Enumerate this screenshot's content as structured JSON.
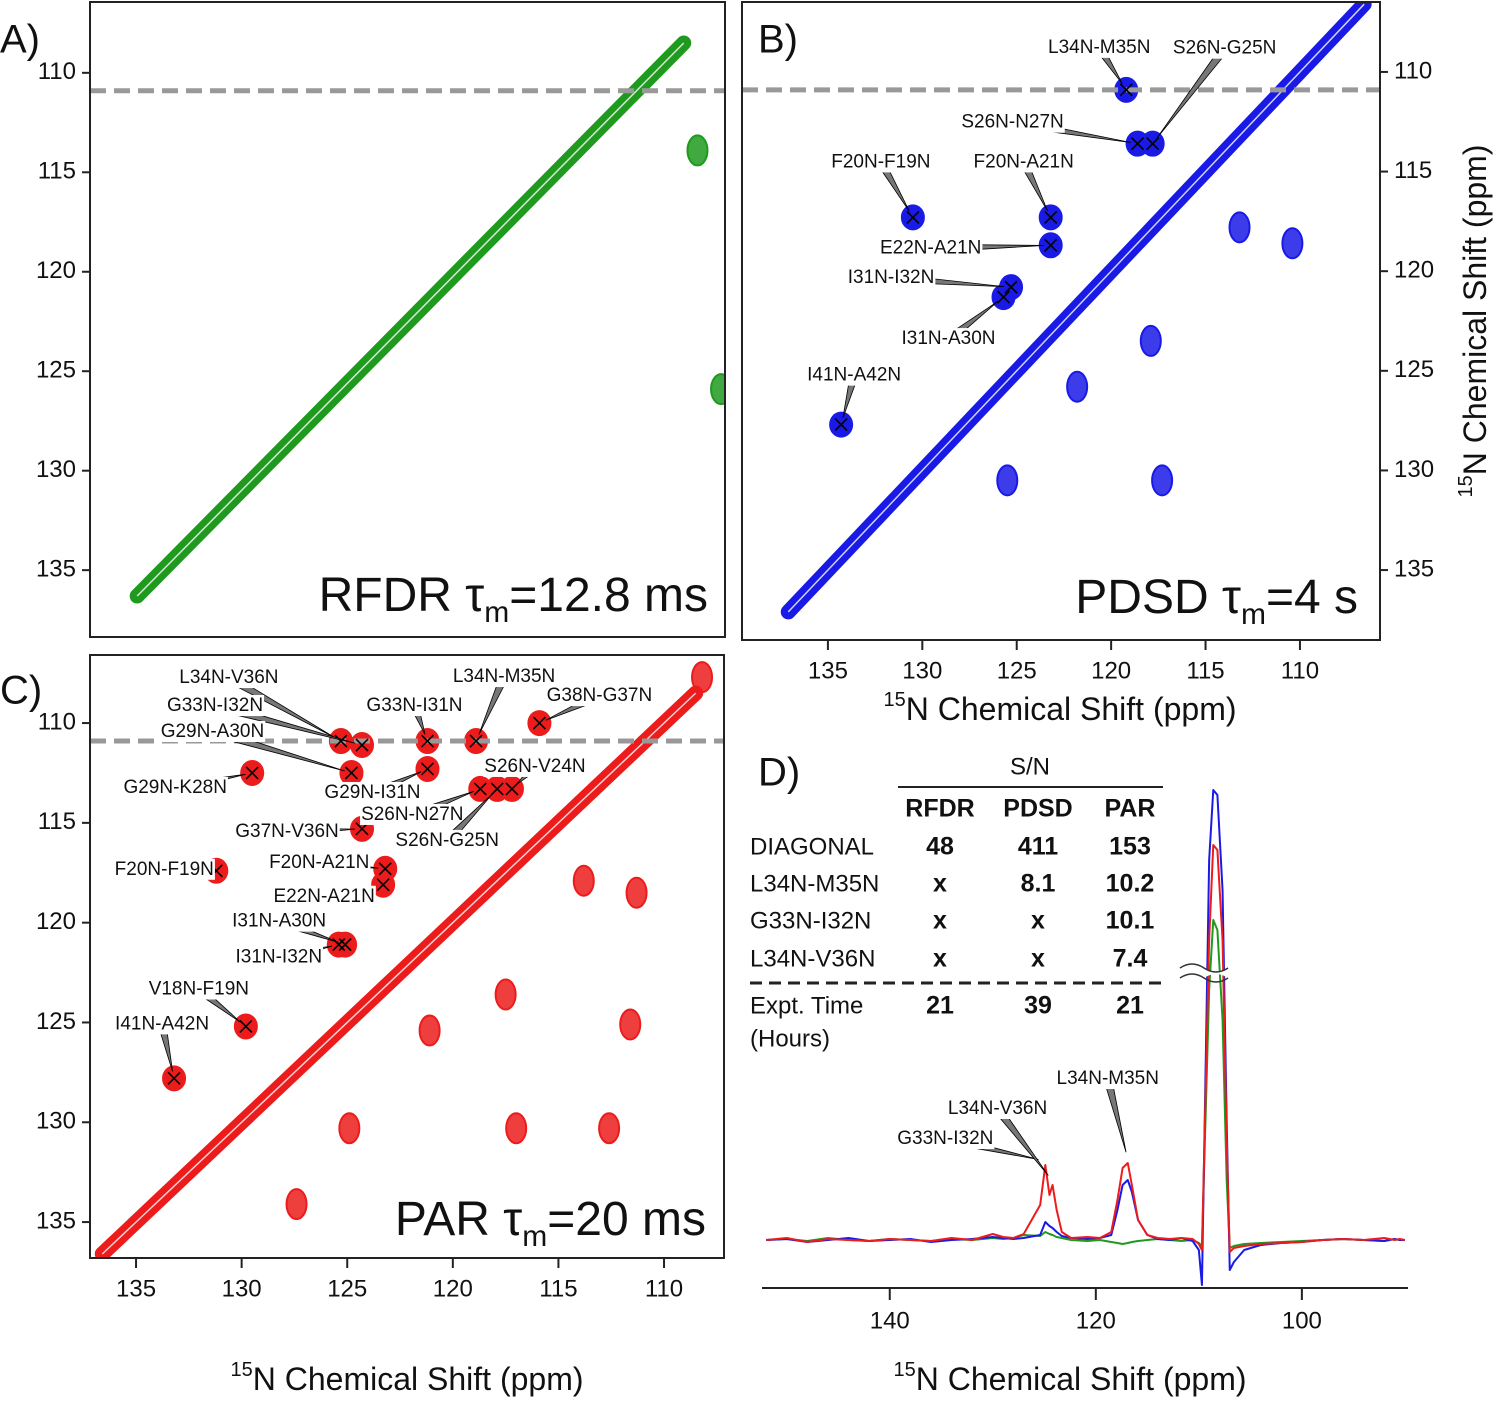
{
  "chart_data": [
    {
      "type": "contour",
      "panel": "A)",
      "annotation": [
        "RFDR τ",
        "m",
        "=12.8 ms"
      ],
      "color": "#1f9a1f",
      "xlim": [
        138.7,
        106.4
      ],
      "ylim": [
        106.44,
        138.36
      ],
      "yticks": [
        110,
        115,
        120,
        125,
        130,
        135
      ],
      "y_axis_side": "left",
      "hline": 110.9,
      "diagonal": [
        136.3,
        108.5
      ],
      "other_peaks": {
        "x": [
          107.8,
          106.6
        ],
        "y": [
          113.9,
          125.9
        ]
      }
    },
    {
      "type": "contour",
      "panel": "B)",
      "annotation": [
        "PDSD τ",
        "m",
        "=4 s"
      ],
      "color": "#1a1ae6",
      "xlim": [
        139.55,
        105.76
      ],
      "ylim": [
        106.49,
        138.51
      ],
      "xticks": [
        135,
        130,
        125,
        120,
        115,
        110
      ],
      "yticks": [
        110,
        115,
        120,
        125,
        130,
        135
      ],
      "y_axis_side": "right",
      "xlabel": [
        "15",
        "N Chemical Shift (ppm)"
      ],
      "ylabel": [
        "15",
        "N Chemical Shift (ppm)"
      ],
      "hline": 110.9,
      "diagonal": [
        137.1,
        106.6
      ],
      "cross_peaks": [
        {
          "label": "L34N-M35N",
          "x": 119.2,
          "y": 110.9
        },
        {
          "label": "S26N-G25N",
          "x": 117.8,
          "y": 113.6
        },
        {
          "label": "S26N-N27N",
          "x": 118.6,
          "y": 113.6
        },
        {
          "label": "F20N-F19N",
          "x": 130.5,
          "y": 117.3
        },
        {
          "label": "F20N-A21N",
          "x": 123.2,
          "y": 117.3
        },
        {
          "label": "E22N-A21N",
          "x": 123.2,
          "y": 118.7
        },
        {
          "label": "I31N-I32N",
          "x": 125.3,
          "y": 120.8
        },
        {
          "label": "I31N-A30N",
          "x": 125.7,
          "y": 121.3
        },
        {
          "label": "I41N-A42N",
          "x": 134.3,
          "y": 127.7
        }
      ],
      "other_peaks": {
        "x": [
          113.2,
          110.4,
          117.9,
          121.8,
          125.5,
          117.3
        ],
        "y": [
          117.8,
          118.6,
          123.5,
          125.8,
          130.5,
          130.5
        ]
      }
    },
    {
      "type": "contour",
      "panel": "C)",
      "annotation": [
        "PAR τ",
        "m",
        "=20 ms"
      ],
      "color": "#ec1c1c",
      "xlim": [
        137.18,
        107.16
      ],
      "ylim": [
        106.59,
        136.8
      ],
      "xticks": [
        135,
        130,
        125,
        120,
        115,
        110
      ],
      "yticks": [
        110,
        115,
        120,
        125,
        130,
        135
      ],
      "y_axis_side": "left",
      "xlabel": [
        "15",
        "N Chemical Shift (ppm)"
      ],
      "hline": 110.9,
      "diagonal": [
        136.6,
        108.5
      ],
      "cross_peaks": [
        {
          "label": "L34N-V36N",
          "x": 125.3,
          "y": 110.9
        },
        {
          "label": "G33N-I32N",
          "x": 124.3,
          "y": 111.1
        },
        {
          "label": "G29N-A30N",
          "x": 124.8,
          "y": 112.5
        },
        {
          "label": "G33N-I31N",
          "x": 121.2,
          "y": 110.9
        },
        {
          "label": "L34N-M35N",
          "x": 118.9,
          "y": 110.9
        },
        {
          "label": "G38N-G37N",
          "x": 115.9,
          "y": 110.0
        },
        {
          "label": "G29N-K28N",
          "x": 129.5,
          "y": 112.5
        },
        {
          "label": "G29N-I31N",
          "x": 121.2,
          "y": 112.3
        },
        {
          "label": "S26N-V24N",
          "x": 117.2,
          "y": 113.3
        },
        {
          "label": "S26N-N27N",
          "x": 118.7,
          "y": 113.3
        },
        {
          "label": "S26N-G25N",
          "x": 117.9,
          "y": 113.3
        },
        {
          "label": "G37N-V36N",
          "x": 124.3,
          "y": 115.3
        },
        {
          "label": "F20N-F19N",
          "x": 131.2,
          "y": 117.4
        },
        {
          "label": "F20N-A21N",
          "x": 123.2,
          "y": 117.3
        },
        {
          "label": "E22N-A21N",
          "x": 123.3,
          "y": 118.1
        },
        {
          "label": "I31N-A30N",
          "x": 125.1,
          "y": 121.1
        },
        {
          "label": "I31N-I32N",
          "x": 125.4,
          "y": 121.1
        },
        {
          "label": "V18N-F19N",
          "x": 129.8,
          "y": 125.2
        },
        {
          "label": "I41N-A42N",
          "x": 133.2,
          "y": 127.8
        }
      ],
      "other_peaks": {
        "x": [
          113.8,
          111.3,
          117.5,
          121.1,
          111.6,
          124.9,
          117.0,
          112.6,
          127.4,
          108.2
        ],
        "y": [
          117.9,
          118.5,
          123.6,
          125.4,
          125.1,
          130.3,
          130.3,
          130.3,
          134.1,
          107.7
        ]
      }
    },
    {
      "type": "line",
      "panel": "D)",
      "xlim": [
        152.4,
        89.7
      ],
      "ylim": [
        -60,
        460
      ],
      "xticks": [
        140,
        120,
        100
      ],
      "xlabel": [
        "15",
        "N Chemical Shift (ppm)"
      ],
      "x": [
        152,
        150,
        148,
        146,
        144,
        142,
        140,
        138,
        136,
        134,
        132,
        130,
        129,
        128,
        127,
        125.4,
        124.9,
        124.5,
        124.2,
        123.8,
        123.3,
        122.4,
        120.8,
        119.6,
        118.5,
        117.9,
        117.4,
        116.9,
        116.5,
        115.9,
        115.0,
        114.0,
        112.8,
        111.7,
        110.6,
        110.0,
        109.7,
        109.0,
        108.6,
        108.2,
        107.7,
        107.3,
        107.0,
        106.6,
        105.6,
        104.0,
        102.0,
        100.0,
        98.0,
        96.0,
        94.0,
        92.0,
        91.0,
        90.5,
        90.0
      ],
      "series": [
        {
          "color": "#1f9a1f",
          "values": [
            0,
            1,
            -1,
            2,
            0,
            -1,
            1,
            0,
            -1,
            1,
            0,
            2,
            1,
            2,
            5,
            4,
            8,
            6,
            5,
            3,
            2,
            0,
            -1,
            0,
            -2,
            -3,
            -4,
            -3,
            -2,
            -1,
            0,
            1,
            0,
            -1,
            0,
            -3,
            -6,
            250,
            320,
            310,
            220,
            60,
            -8,
            -6,
            -4,
            -3,
            -2,
            -1,
            0,
            1,
            0,
            -1,
            1,
            0,
            0
          ]
        },
        {
          "color": "#1a1ae6",
          "values": [
            0,
            1,
            -2,
            0,
            2,
            -1,
            0,
            1,
            -2,
            0,
            1,
            3,
            2,
            1,
            2,
            5,
            18,
            14,
            12,
            8,
            4,
            2,
            1,
            2,
            5,
            30,
            55,
            60,
            48,
            20,
            5,
            1,
            0,
            2,
            -1,
            -10,
            -45,
            380,
            450,
            445,
            350,
            120,
            -30,
            -22,
            -10,
            -5,
            -3,
            -2,
            0,
            1,
            0,
            -1,
            1,
            0,
            0
          ]
        },
        {
          "color": "#ec1c1c",
          "values": [
            0,
            2,
            -2,
            1,
            0,
            -1,
            1,
            0,
            -1,
            2,
            0,
            6,
            3,
            2,
            6,
            35,
            75,
            45,
            55,
            30,
            8,
            2,
            3,
            2,
            8,
            40,
            72,
            77,
            55,
            20,
            5,
            2,
            1,
            2,
            1,
            -4,
            -10,
            300,
            395,
            390,
            300,
            100,
            -12,
            -8,
            -6,
            -4,
            -3,
            -2,
            0,
            1,
            0,
            2,
            0,
            1,
            0
          ]
        }
      ],
      "annotations": [
        {
          "text": "G33N-I32N",
          "x": 124.9
        },
        {
          "text": "L34N-V36N",
          "x": 124.2
        },
        {
          "text": "L34N-M35N",
          "x": 116.9
        }
      ],
      "table": {
        "title": "S/N",
        "columns": [
          "RFDR",
          "PDSD",
          "PAR"
        ],
        "rows": [
          {
            "label": [
              "DIAGONAL"
            ],
            "cells": [
              48,
              411,
              153
            ]
          },
          {
            "label": [
              "L34N-M35N"
            ],
            "cells": [
              "x",
              8.1,
              10.2
            ]
          },
          {
            "label": [
              "G33N-I32N"
            ],
            "cells": [
              "x",
              "x",
              10.1
            ]
          },
          {
            "label": [
              "L34N-V36N"
            ],
            "cells": [
              "x",
              "x",
              7.4
            ]
          },
          {
            "label": [
              "Expt. Time",
              "(Hours)"
            ],
            "cells": [
              21,
              39,
              21
            ]
          }
        ]
      }
    }
  ]
}
